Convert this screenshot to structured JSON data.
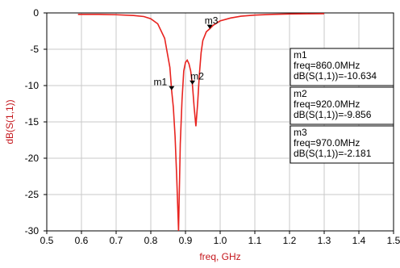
{
  "chart_data": {
    "type": "line",
    "xlabel": "freq, GHz",
    "ylabel": "dB(S(1,1))",
    "xlim": [
      0.5,
      1.5
    ],
    "ylim": [
      -30,
      0
    ],
    "x_ticks": [
      "0.5",
      "0.6",
      "0.7",
      "0.8",
      "0.9",
      "1.0",
      "1.1",
      "1.2",
      "1.3",
      "1.4",
      "1.5"
    ],
    "y_ticks": [
      "0",
      "-5",
      "-10",
      "-15",
      "-20",
      "-25",
      "-30"
    ],
    "grid": true,
    "line_color": "#e8231f",
    "series": [
      {
        "x": [
          0.59,
          0.65,
          0.7,
          0.75,
          0.78,
          0.8,
          0.82,
          0.84,
          0.855,
          0.86,
          0.865,
          0.87,
          0.875,
          0.88,
          0.885,
          0.89,
          0.895,
          0.9,
          0.905,
          0.91,
          0.915,
          0.92,
          0.925,
          0.93,
          0.935,
          0.94,
          0.945,
          0.95,
          0.96,
          0.97,
          0.98,
          1.0,
          1.03,
          1.06,
          1.1,
          1.15,
          1.2,
          1.3
        ],
        "y": [
          -0.2,
          -0.2,
          -0.25,
          -0.35,
          -0.5,
          -0.8,
          -1.5,
          -3.5,
          -7.5,
          -10.634,
          -13.0,
          -17.0,
          -23.0,
          -30.0,
          -18.0,
          -12.0,
          -8.0,
          -6.8,
          -6.5,
          -7.0,
          -8.0,
          -9.856,
          -13.0,
          -15.6,
          -12.5,
          -8.5,
          -5.5,
          -3.8,
          -2.6,
          -2.181,
          -1.7,
          -1.1,
          -0.7,
          -0.45,
          -0.3,
          -0.2,
          -0.15,
          -0.1
        ]
      }
    ],
    "markers": [
      {
        "name": "m1",
        "freq": 0.86,
        "value": -10.634,
        "text": [
          "m1",
          "freq=860.0MHz",
          "dB(S(1,1))=-10.634"
        ]
      },
      {
        "name": "m2",
        "freq": 0.92,
        "value": -9.856,
        "text": [
          "m2",
          "freq=920.0MHz",
          "dB(S(1,1))=-9.856"
        ]
      },
      {
        "name": "m3",
        "freq": 0.97,
        "value": -2.181,
        "text": [
          "m3",
          "freq=970.0MHz",
          "dB(S(1,1))=-2.181"
        ]
      }
    ]
  }
}
